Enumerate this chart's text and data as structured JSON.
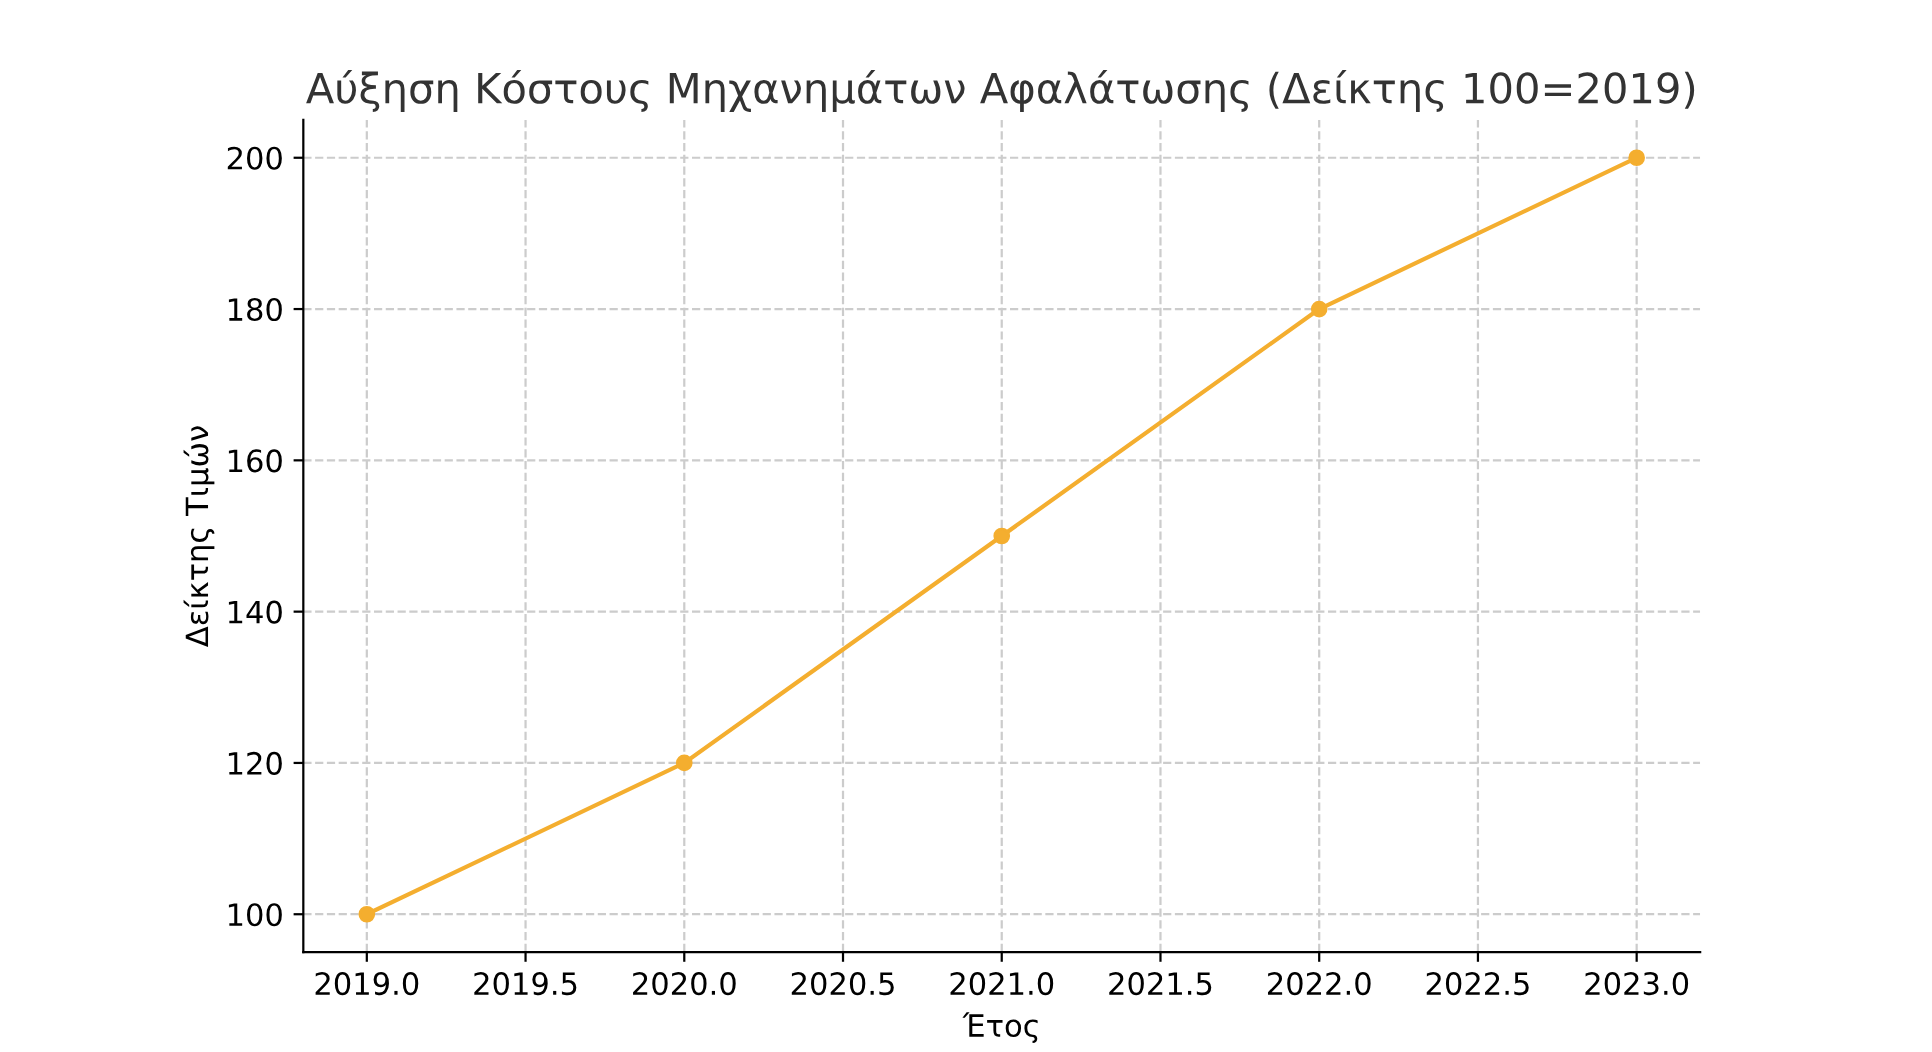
{
  "chart_data": {
    "type": "line",
    "title": "Αύξηση Κόστους Μηχανημάτων Αφαλάτωσης (Δείκτης 100=2019)",
    "xlabel": "Έτος",
    "ylabel": "Δείκτης Τιμών",
    "x": [
      2019,
      2020,
      2021,
      2022,
      2023
    ],
    "series": [
      {
        "color": "#f4ae2f",
        "values": [
          100,
          120,
          150,
          180,
          200
        ]
      }
    ],
    "xlim": [
      2018.8,
      2023.2
    ],
    "ylim": [
      95,
      205
    ],
    "xticks": [
      {
        "value": 2019,
        "label": "2019.0"
      },
      {
        "value": 2019.5,
        "label": "2019.5"
      },
      {
        "value": 2020,
        "label": "2020.0"
      },
      {
        "value": 2020.5,
        "label": "2020.5"
      },
      {
        "value": 2021,
        "label": "2021.0"
      },
      {
        "value": 2021.5,
        "label": "2021.5"
      },
      {
        "value": 2022,
        "label": "2022.0"
      },
      {
        "value": 2022.5,
        "label": "2022.5"
      },
      {
        "value": 2023,
        "label": "2023.0"
      }
    ],
    "yticks": [
      100,
      120,
      140,
      160,
      180,
      200
    ],
    "grid": true,
    "marker": "circle",
    "line_style": "solid"
  }
}
